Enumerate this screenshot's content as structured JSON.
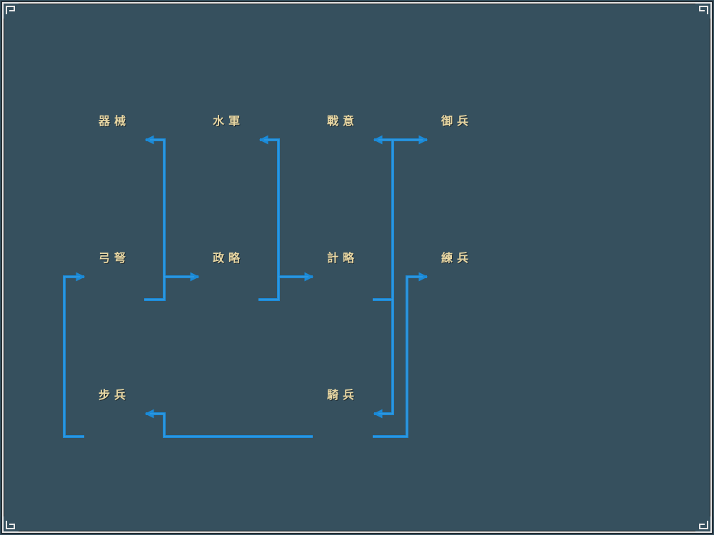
{
  "skill_tree": {
    "nodes": {
      "qixie": "器械",
      "shuijun": "水軍",
      "zhanyi": "戰意",
      "yubing": "御兵",
      "gongnu": "弓弩",
      "zhenglue": "政略",
      "jilue": "計略",
      "lianbing": "練兵",
      "bubing": "步兵",
      "qibing": "騎兵"
    }
  },
  "colors": {
    "background": "#36505e",
    "connector": "#1a8ad8",
    "label": "#e8d7a3",
    "frame": "#e6e6e6"
  }
}
